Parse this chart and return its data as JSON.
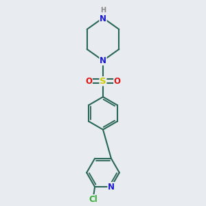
{
  "bg_color": "#e8ecf0",
  "bond_color": "#2a6655",
  "bond_width": 1.5,
  "atom_colors": {
    "N": "#1a1acc",
    "NH": "#888888",
    "S": "#cccc00",
    "O": "#dd1111",
    "Cl": "#33aa33",
    "C": "#2a6655"
  },
  "font_size_atom": 8.5
}
